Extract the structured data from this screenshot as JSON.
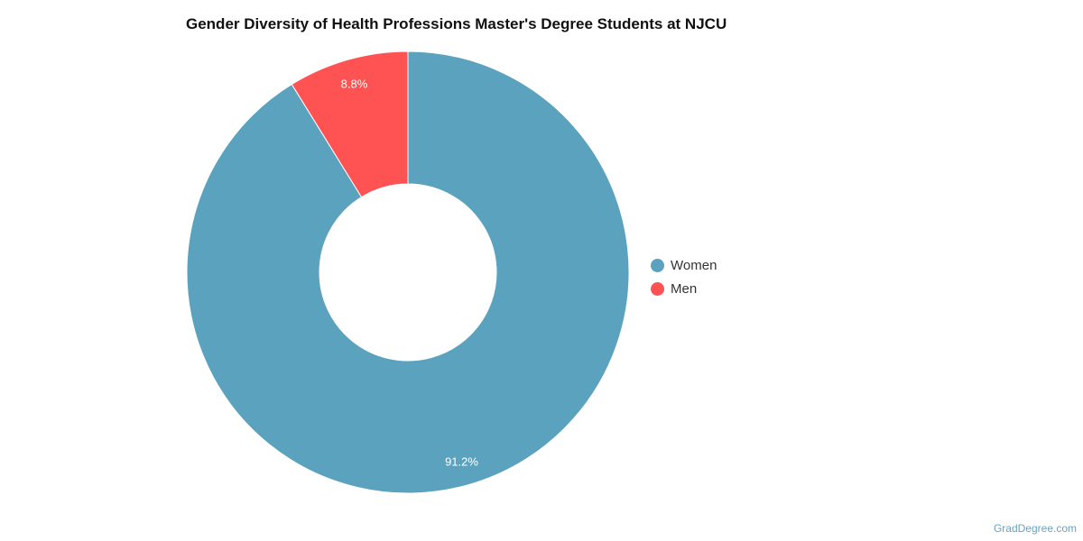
{
  "chart_data": {
    "type": "pie",
    "donut": true,
    "title": "Gender Diversity of Health Professions Master's Degree Students at NJCU",
    "series": [
      {
        "name": "Women",
        "value": 91.2,
        "label": "91.2%",
        "color": "#5ba2bf"
      },
      {
        "name": "Men",
        "value": 8.8,
        "label": "8.8%",
        "color": "#ff5252"
      }
    ],
    "legend": "right"
  },
  "credit": "GradDegree.com"
}
